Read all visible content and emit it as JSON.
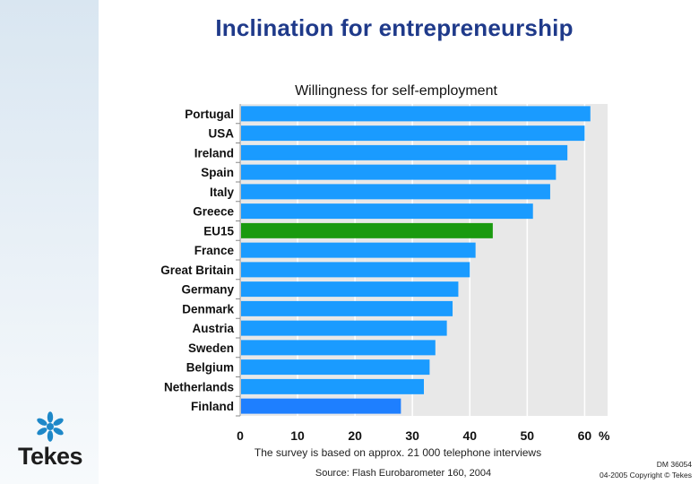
{
  "header": {
    "title": "Inclination for entrepreneurship"
  },
  "chart_data": {
    "type": "bar",
    "orientation": "horizontal",
    "title": "Willingness for self-employment",
    "xlabel": "",
    "ylabel": "",
    "unit_label": "%",
    "xlim": [
      0,
      64
    ],
    "xticks": [
      0,
      10,
      20,
      30,
      40,
      50,
      60
    ],
    "grid": true,
    "categories": [
      "Portugal",
      "USA",
      "Ireland",
      "Spain",
      "Italy",
      "Greece",
      "EU15",
      "France",
      "Great Britain",
      "Germany",
      "Denmark",
      "Austria",
      "Sweden",
      "Belgium",
      "Netherlands",
      "Finland"
    ],
    "values": [
      61,
      60,
      57,
      55,
      54,
      51,
      44,
      41,
      40,
      38,
      37,
      36,
      34,
      33,
      32,
      28
    ],
    "highlight": "EU15",
    "colors": {
      "bar": "#1a9bff",
      "highlight": "#1a9a0f",
      "last_bar": "#1e7fff",
      "plot_bg": "#e8e8e8",
      "grid": "#ffffff"
    }
  },
  "footer": {
    "note": "The survey is based on approx. 21 000 telephone interviews",
    "source": "Source: Flash Eurobarometer 160, 2004",
    "doc_id": "DM 36054",
    "copyright": "04-2005 Copyright © Tekes"
  },
  "logo": {
    "text": "Tekes",
    "icon": "tekes-star-icon",
    "color": "#1e88c8"
  }
}
